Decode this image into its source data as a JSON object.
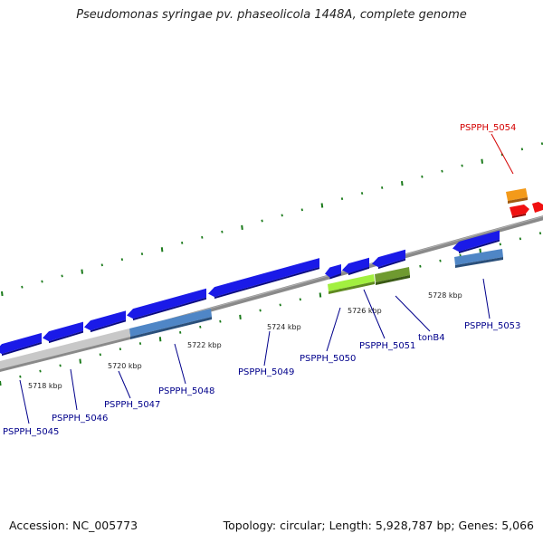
{
  "title": "Pseudomonas syringae pv. phaseolicola 1448A, complete genome",
  "footer": {
    "accession": "Accession: NC_005773",
    "summary": "Topology: circular; Length: 5,928,787 bp; Genes: 5,066"
  },
  "colors": {
    "backbone": "#7a7a7a",
    "cds": "#1a1ae8",
    "tick": "#1a7a1a",
    "label": "#00008b",
    "highlight": "#d40000",
    "light_blue": "#4f86c6",
    "lime": "#a2f040",
    "olive": "#6f9a30",
    "gray": "#c6c6c6",
    "orange": "#f39a1a",
    "red": "#f01010"
  },
  "kbp_labels": [
    "5718 kbp",
    "5720 kbp",
    "5722 kbp",
    "5724 kbp",
    "5726 kbp",
    "5728 kbp"
  ],
  "gene_labels": [
    "PSPPH_5045",
    "PSPPH_5046",
    "PSPPH_5047",
    "PSPPH_5048",
    "PSPPH_5049",
    "PSPPH_5050",
    "PSPPH_5051",
    "tonB4",
    "PSPPH_5053",
    "PSPPH_5054"
  ]
}
